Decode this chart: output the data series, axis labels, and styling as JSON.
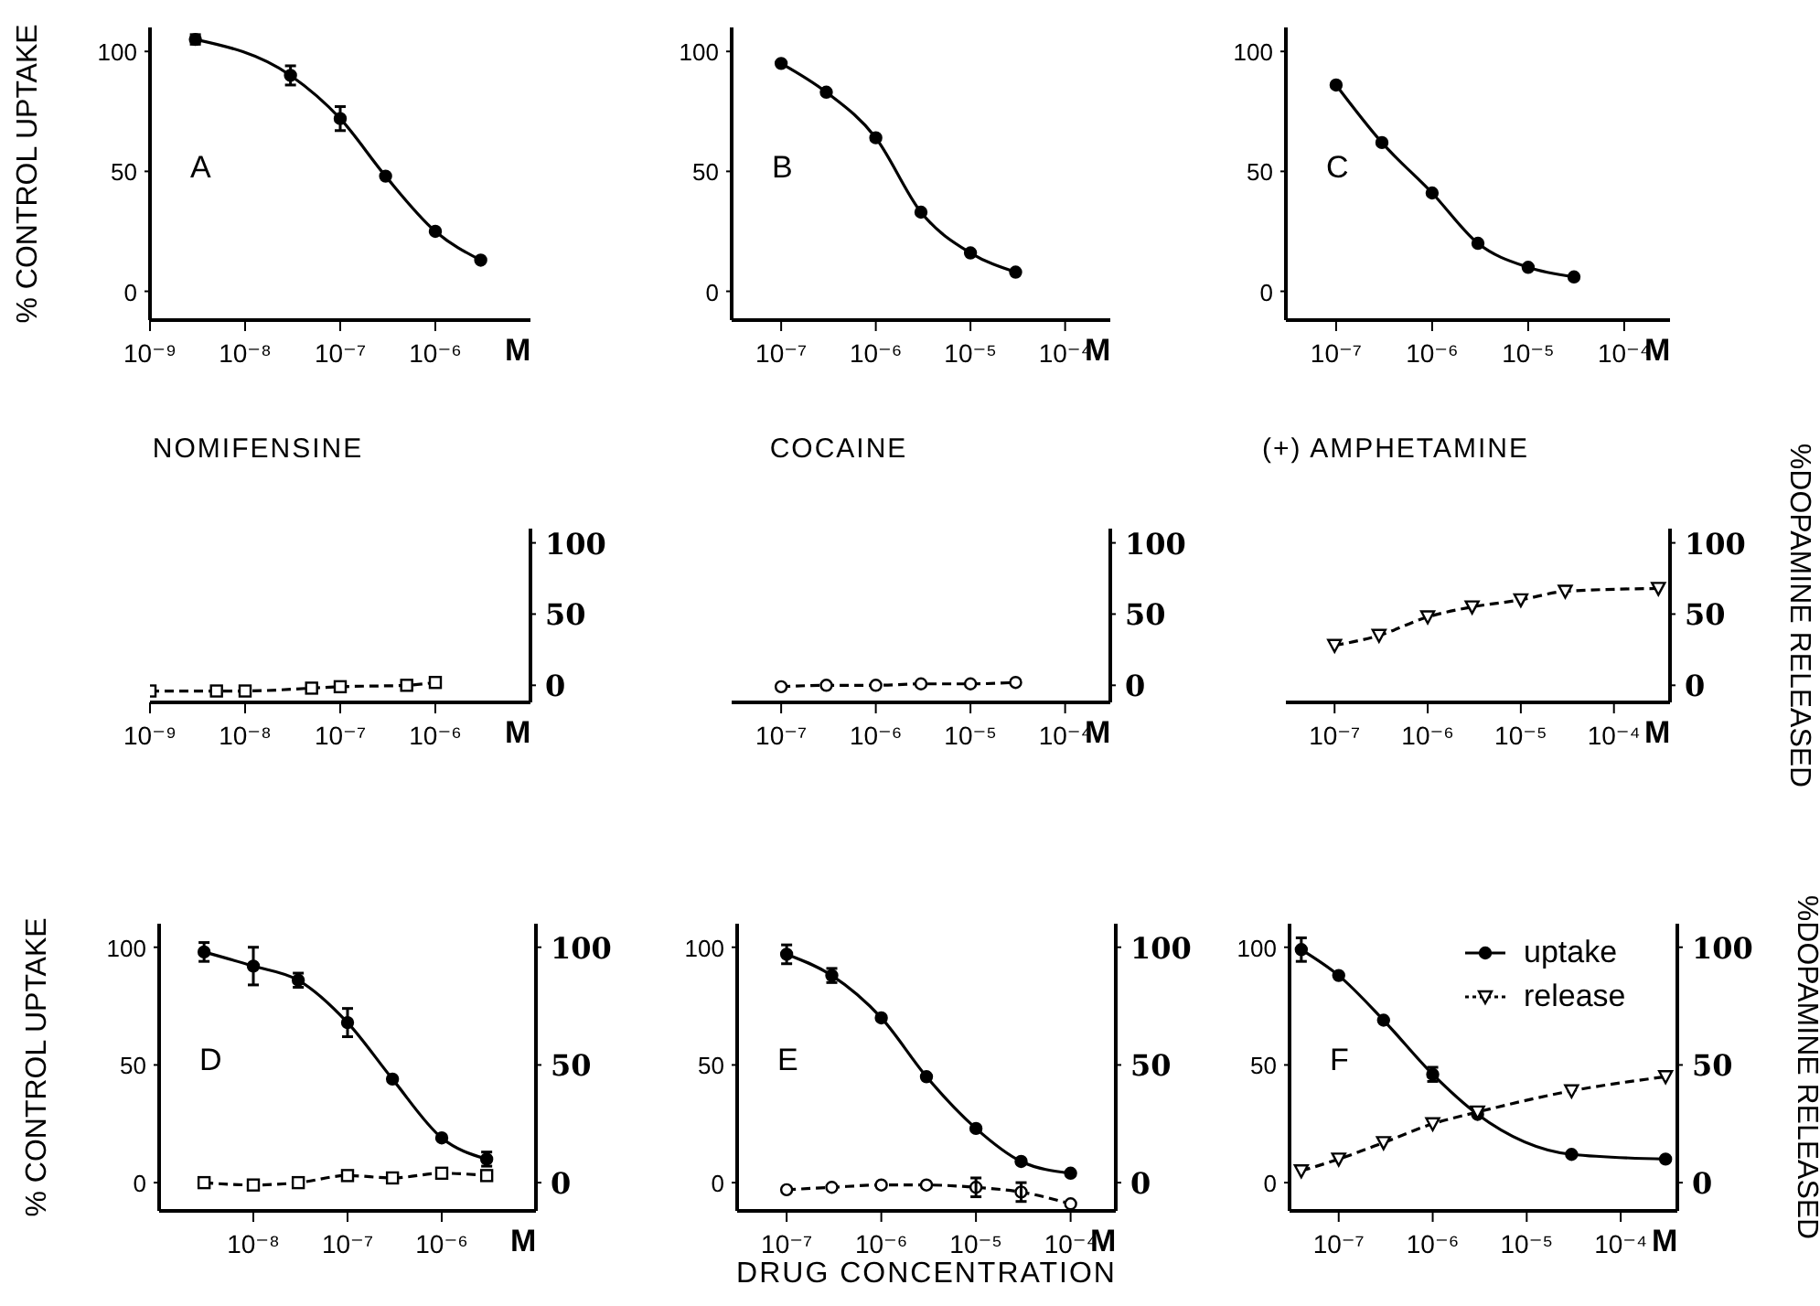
{
  "chart_data": [
    {
      "type": "line",
      "log": "x",
      "ylabel": "% CONTROL UPTAKE",
      "xlabel": "M",
      "annotations": [
        "A"
      ],
      "xlim": [
        1e-09,
        1e-05
      ],
      "xticks": [
        {
          "value": 1e-09,
          "label": "10⁻⁹"
        },
        {
          "value": 1e-08,
          "label": "10⁻⁸"
        },
        {
          "value": 1e-07,
          "label": "10⁻⁷"
        },
        {
          "value": 1e-06,
          "label": "10⁻⁶"
        }
      ],
      "ylim": [
        -12,
        110
      ],
      "yticks": [
        0,
        50,
        100
      ],
      "series": [
        {
          "color": "#000000",
          "marker": "circle",
          "line_style": "solid",
          "x": [
            3e-09,
            3e-08,
            1e-07,
            3e-07,
            1e-06,
            3e-06
          ],
          "values": [
            105,
            90,
            72,
            48,
            25,
            13
          ],
          "errors": [
            2,
            4,
            5,
            null,
            null,
            null
          ]
        }
      ]
    },
    {
      "type": "line",
      "log": "x",
      "xlabel": "M",
      "annotations": [
        "B"
      ],
      "xlim": [
        3e-08,
        0.0003
      ],
      "xticks": [
        {
          "value": 1e-07,
          "label": "10⁻⁷"
        },
        {
          "value": 1e-06,
          "label": "10⁻⁶"
        },
        {
          "value": 1e-05,
          "label": "10⁻⁵"
        },
        {
          "value": 0.0001,
          "label": "10⁻⁴"
        }
      ],
      "ylim": [
        -12,
        110
      ],
      "yticks": [
        0,
        50,
        100
      ],
      "series": [
        {
          "color": "#000000",
          "marker": "circle",
          "line_style": "solid",
          "x": [
            1e-07,
            3e-07,
            1e-06,
            3e-06,
            1e-05,
            3e-05
          ],
          "values": [
            95,
            83,
            64,
            33,
            16,
            8
          ]
        }
      ]
    },
    {
      "type": "line",
      "log": "x",
      "xlabel": "M",
      "annotations": [
        "C"
      ],
      "xlim": [
        3e-08,
        0.0003
      ],
      "xticks": [
        {
          "value": 1e-07,
          "label": "10⁻⁷"
        },
        {
          "value": 1e-06,
          "label": "10⁻⁶"
        },
        {
          "value": 1e-05,
          "label": "10⁻⁵"
        },
        {
          "value": 0.0001,
          "label": "10⁻⁴"
        }
      ],
      "ylim": [
        -12,
        110
      ],
      "yticks": [
        0,
        50,
        100
      ],
      "series": [
        {
          "color": "#000000",
          "marker": "circle",
          "line_style": "solid",
          "x": [
            1e-07,
            3e-07,
            1e-06,
            3e-06,
            1e-05,
            3e-05
          ],
          "values": [
            86,
            62,
            41,
            20,
            10,
            6
          ]
        }
      ]
    },
    {
      "type": "line",
      "log": "x",
      "title": "NOMIFENSINE",
      "xlabel": "M",
      "xlim": [
        1e-09,
        1e-05
      ],
      "xticks": [
        {
          "value": 1e-09,
          "label": "10⁻⁹"
        },
        {
          "value": 1e-08,
          "label": "10⁻⁸"
        },
        {
          "value": 1e-07,
          "label": "10⁻⁷"
        },
        {
          "value": 1e-06,
          "label": "10⁻⁶"
        }
      ],
      "y2lim": [
        -12,
        110
      ],
      "y2ticks": [
        0,
        50,
        100
      ],
      "series": [
        {
          "color": "#000000",
          "marker": "square",
          "line_style": "dashed",
          "axis": "y2",
          "x": [
            1e-09,
            5e-09,
            1e-08,
            5e-08,
            1e-07,
            5e-07,
            1e-06
          ],
          "values": [
            -4,
            -4,
            -4,
            -2,
            -1,
            0,
            2
          ]
        }
      ]
    },
    {
      "type": "line",
      "log": "x",
      "title": "COCAINE",
      "xlabel": "M",
      "xlim": [
        3e-08,
        0.0003
      ],
      "xticks": [
        {
          "value": 1e-07,
          "label": "10⁻⁷"
        },
        {
          "value": 1e-06,
          "label": "10⁻⁶"
        },
        {
          "value": 1e-05,
          "label": "10⁻⁵"
        },
        {
          "value": 0.0001,
          "label": "10⁻⁴"
        }
      ],
      "y2lim": [
        -12,
        110
      ],
      "y2ticks": [
        0,
        50,
        100
      ],
      "series": [
        {
          "color": "#000000",
          "marker": "circle",
          "line_style": "dashed",
          "axis": "y2",
          "x": [
            1e-07,
            3e-07,
            1e-06,
            3e-06,
            1e-05,
            3e-05
          ],
          "values": [
            -1,
            0,
            0,
            1,
            1,
            2
          ]
        }
      ]
    },
    {
      "type": "line",
      "log": "x",
      "title": "(+) AMPHETAMINE",
      "xlabel": "M",
      "y2label": "%DOPAMINE RELEASED",
      "xlim": [
        3e-08,
        0.0004
      ],
      "xticks": [
        {
          "value": 1e-07,
          "label": "10⁻⁷"
        },
        {
          "value": 1e-06,
          "label": "10⁻⁶"
        },
        {
          "value": 1e-05,
          "label": "10⁻⁵"
        },
        {
          "value": 0.0001,
          "label": "10⁻⁴"
        }
      ],
      "y2lim": [
        -12,
        110
      ],
      "y2ticks": [
        0,
        50,
        100
      ],
      "series": [
        {
          "color": "#000000",
          "marker": "triangle",
          "line_style": "dashed",
          "axis": "y2",
          "x": [
            1e-07,
            3e-07,
            1e-06,
            3e-06,
            1e-05,
            3e-05,
            0.0003
          ],
          "values": [
            28,
            35,
            48,
            55,
            60,
            66,
            68
          ]
        }
      ]
    },
    {
      "type": "line",
      "log": "x",
      "ylabel": "% CONTROL UPTAKE",
      "xlabel": "M",
      "annotations": [
        "D"
      ],
      "xlim": [
        1e-09,
        1e-05
      ],
      "xticks": [
        {
          "value": 1e-08,
          "label": "10⁻⁸"
        },
        {
          "value": 1e-07,
          "label": "10⁻⁷"
        },
        {
          "value": 1e-06,
          "label": "10⁻⁶"
        }
      ],
      "ylim": [
        -12,
        110
      ],
      "yticks": [
        0,
        50,
        100
      ],
      "y2lim": [
        -12,
        110
      ],
      "y2ticks": [
        0,
        50,
        100
      ],
      "series": [
        {
          "color": "#000000",
          "marker": "circle",
          "line_style": "solid",
          "x": [
            3e-09,
            1e-08,
            3e-08,
            1e-07,
            3e-07,
            1e-06,
            3e-06
          ],
          "values": [
            98,
            92,
            86,
            68,
            44,
            19,
            10
          ],
          "errors": [
            4,
            8,
            3,
            6,
            null,
            null,
            3
          ]
        },
        {
          "color": "#000000",
          "marker": "square",
          "line_style": "dashed",
          "axis": "y2",
          "x": [
            3e-09,
            1e-08,
            3e-08,
            1e-07,
            3e-07,
            1e-06,
            3e-06
          ],
          "values": [
            0,
            -1,
            0,
            3,
            2,
            4,
            3
          ]
        }
      ]
    },
    {
      "type": "line",
      "log": "x",
      "xlabel": "M",
      "annotations": [
        "E",
        "DRUG CONCENTRATION"
      ],
      "xlim": [
        3e-08,
        0.0003
      ],
      "xticks": [
        {
          "value": 1e-07,
          "label": "10⁻⁷"
        },
        {
          "value": 1e-06,
          "label": "10⁻⁶"
        },
        {
          "value": 1e-05,
          "label": "10⁻⁵"
        },
        {
          "value": 0.0001,
          "label": "10⁻⁴"
        }
      ],
      "ylim": [
        -12,
        110
      ],
      "yticks": [
        0,
        50,
        100
      ],
      "y2lim": [
        -12,
        110
      ],
      "y2ticks": [
        0,
        50,
        100
      ],
      "series": [
        {
          "color": "#000000",
          "marker": "circle",
          "line_style": "solid",
          "x": [
            1e-07,
            3e-07,
            1e-06,
            3e-06,
            1e-05,
            3e-05,
            0.0001
          ],
          "values": [
            97,
            88,
            70,
            45,
            23,
            9,
            4
          ],
          "errors": [
            4,
            3,
            null,
            null,
            null,
            null,
            null
          ]
        },
        {
          "color": "#000000",
          "marker": "circle",
          "line_style": "dashed",
          "axis": "y2",
          "x": [
            1e-07,
            3e-07,
            1e-06,
            3e-06,
            1e-05,
            3e-05,
            0.0001
          ],
          "values": [
            -3,
            -2,
            -1,
            -1,
            -2,
            -4,
            -9
          ],
          "errors": [
            null,
            null,
            null,
            null,
            4,
            4,
            null
          ]
        }
      ]
    },
    {
      "type": "line",
      "log": "x",
      "xlabel": "M",
      "y2label": "%DOPAMINE RELEASED",
      "annotations": [
        "F"
      ],
      "legend": "top right",
      "xlim": [
        3e-08,
        0.0004
      ],
      "xticks": [
        {
          "value": 1e-07,
          "label": "10⁻⁷"
        },
        {
          "value": 1e-06,
          "label": "10⁻⁶"
        },
        {
          "value": 1e-05,
          "label": "10⁻⁵"
        },
        {
          "value": 0.0001,
          "label": "10⁻⁴"
        }
      ],
      "ylim": [
        -12,
        110
      ],
      "yticks": [
        0,
        50,
        100
      ],
      "y2lim": [
        -12,
        110
      ],
      "y2ticks": [
        0,
        50,
        100
      ],
      "series": [
        {
          "name": "uptake",
          "color": "#000000",
          "marker": "circle",
          "line_style": "solid",
          "x": [
            4e-08,
            1e-07,
            3e-07,
            1e-06,
            3e-06,
            3e-05,
            0.0003
          ],
          "values": [
            99,
            88,
            69,
            46,
            29,
            12,
            10
          ],
          "errors": [
            5,
            null,
            null,
            3,
            null,
            null,
            null
          ]
        },
        {
          "name": "release",
          "color": "#000000",
          "marker": "triangle",
          "line_style": "dashed",
          "axis": "y2",
          "x": [
            4e-08,
            1e-07,
            3e-07,
            1e-06,
            3e-06,
            3e-05,
            0.0003
          ],
          "values": [
            5,
            10,
            17,
            25,
            30,
            39,
            45
          ]
        }
      ]
    }
  ]
}
